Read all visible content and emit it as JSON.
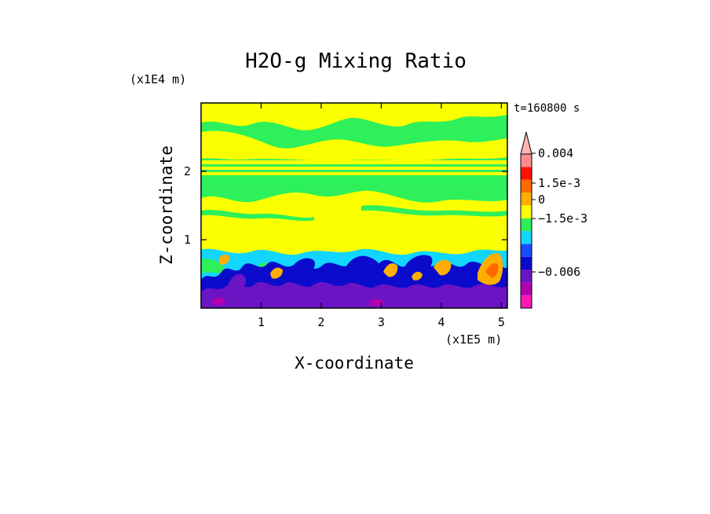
{
  "chart_data": {
    "type": "heatmap",
    "title": "H2O-g Mixing Ratio",
    "xlabel": "X-coordinate",
    "ylabel": "Z-coordinate",
    "x_scale_label": "(x1E5 m)",
    "y_scale_label": "(x1E4 m)",
    "time_label": "t=160800 s",
    "xlim": [
      0,
      5.1
    ],
    "ylim": [
      0,
      3.0
    ],
    "x_ticks": [
      1,
      2,
      3,
      4,
      5
    ],
    "x_tick_labels": [
      "1",
      "2",
      "3",
      "4",
      "5"
    ],
    "y_ticks": [
      1,
      2
    ],
    "y_tick_labels": [
      "1",
      "2"
    ],
    "colorbar": {
      "colors": [
        "#ff1ab3",
        "#b000b0",
        "#6a14c4",
        "#0b0bcc",
        "#1a4dff",
        "#12d6ff",
        "#2ef05a",
        "#fbff00",
        "#ffae00",
        "#ff6a00",
        "#ff1100",
        "#ff8c8c",
        "#ffb4b4"
      ],
      "labels": [
        "0.004",
        "1.5e-3",
        "0",
        "−1.5e-3",
        "−0.006"
      ],
      "label_values": [
        0.004,
        0.0015,
        0,
        -0.0015,
        -0.006
      ],
      "extend": "max"
    },
    "regions_note": "Lower layer z<0.4 dominated by negative anomalies (purple/blue) with turbulent plumes; 0.4-1.0 yellow/cyan mix; upper layers 1-3 alternating yellow and green bands"
  }
}
